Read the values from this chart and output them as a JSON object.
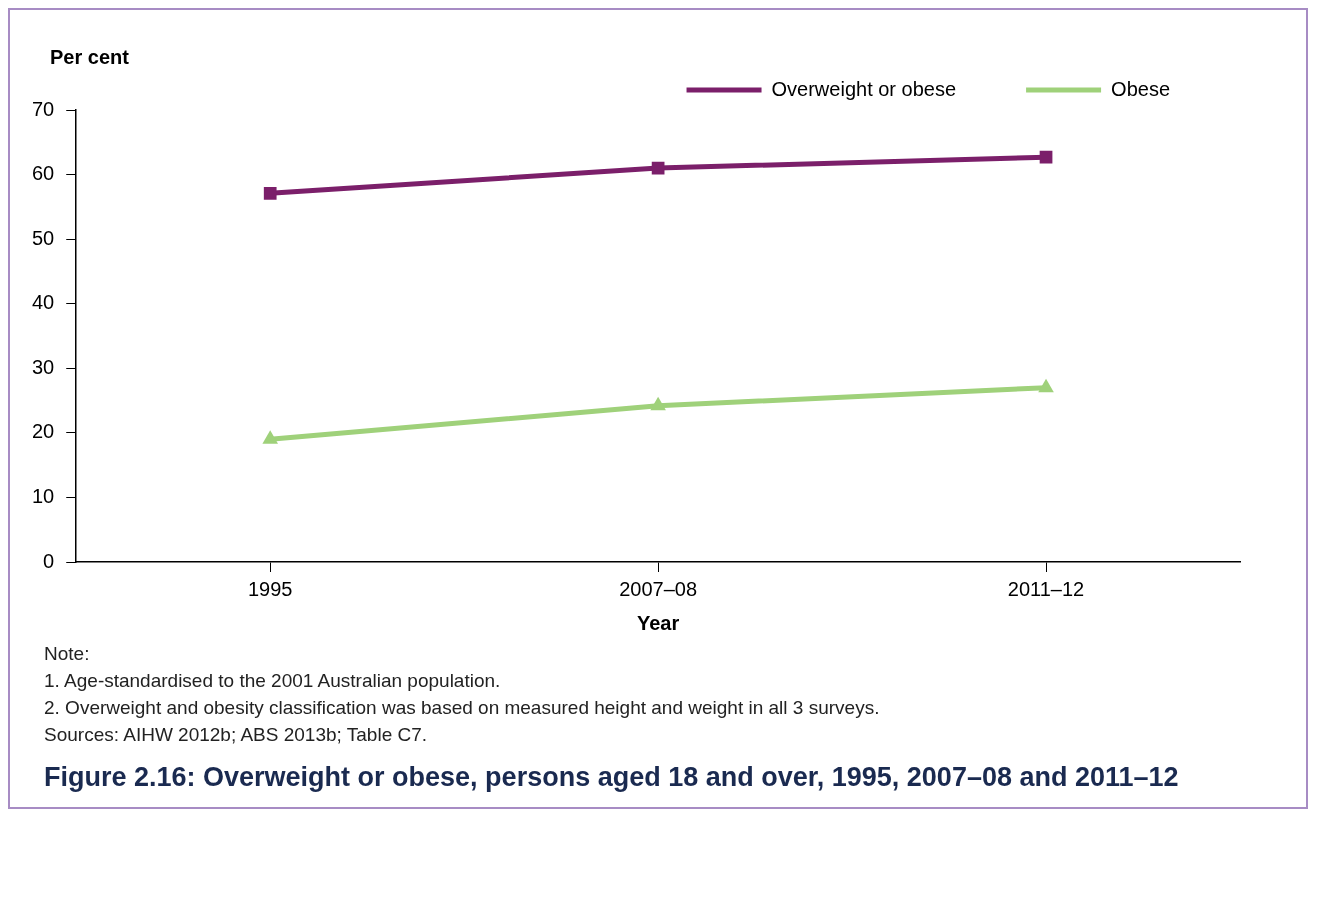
{
  "chart_data": {
    "type": "line",
    "title": "Figure 2.16: Overweight or obese, persons aged 18 and over, 1995, 2007–08 and 2011–12",
    "xlabel": "Year",
    "ylabel": "Per cent",
    "categories": [
      "1995",
      "2007–08",
      "2011–12"
    ],
    "ylim": [
      0,
      70
    ],
    "yticks": [
      0,
      10,
      20,
      30,
      40,
      50,
      60,
      70
    ],
    "series": [
      {
        "name": "Overweight or obese",
        "color": "#7b1f6a",
        "values": [
          57.1,
          61,
          62.7
        ],
        "marker": "square"
      },
      {
        "name": "Obese",
        "color": "#9fd17a",
        "values": [
          19,
          24.2,
          27
        ],
        "marker": "triangle"
      }
    ],
    "grid": false,
    "legend": "top",
    "line_style": "solid",
    "annotations": [
      "Note:",
      "1.    Age-standardised to the 2001 Australian population.",
      "2.    Overweight and obesity classification was based on measured height and weight in all 3 surveys.",
      "Sources: AIHW 2012b; ABS 2013b; Table C7."
    ]
  }
}
